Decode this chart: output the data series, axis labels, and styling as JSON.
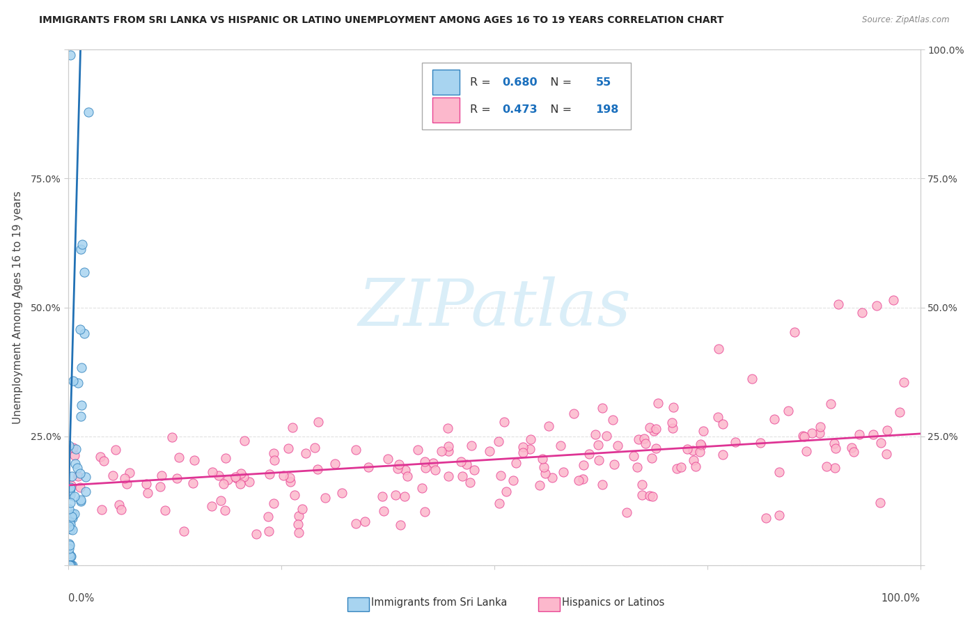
{
  "title": "IMMIGRANTS FROM SRI LANKA VS HISPANIC OR LATINO UNEMPLOYMENT AMONG AGES 16 TO 19 YEARS CORRELATION CHART",
  "source": "Source: ZipAtlas.com",
  "ylabel": "Unemployment Among Ages 16 to 19 years",
  "color_blue_face": "#a8d4f0",
  "color_blue_edge": "#3182bd",
  "color_pink_face": "#fcb8cc",
  "color_pink_edge": "#e84393",
  "color_trend_blue": "#2171b5",
  "color_trend_pink": "#de3494",
  "watermark_text": "ZIPatlas",
  "watermark_color": "#daeef8",
  "legend_label_1": "Immigrants from Sri Lanka",
  "legend_label_2": "Hispanics or Latinos",
  "R1": "0.680",
  "N1": "55",
  "R2": "0.473",
  "N2": "198",
  "legend_text_color": "#333333",
  "legend_value_color": "#1a6fbd",
  "ytick_labels_left": [
    "",
    "25.0%",
    "50.0%",
    "75.0%",
    ""
  ],
  "ytick_labels_right": [
    "",
    "25.0%",
    "50.0%",
    "75.0%",
    "100.0%"
  ],
  "xlim": [
    0,
    1
  ],
  "ylim": [
    0,
    1
  ],
  "grid_color": "#dddddd",
  "spine_color": "#cccccc",
  "title_color": "#222222",
  "source_color": "#888888",
  "axis_label_color": "#444444",
  "tick_label_color": "#444444"
}
